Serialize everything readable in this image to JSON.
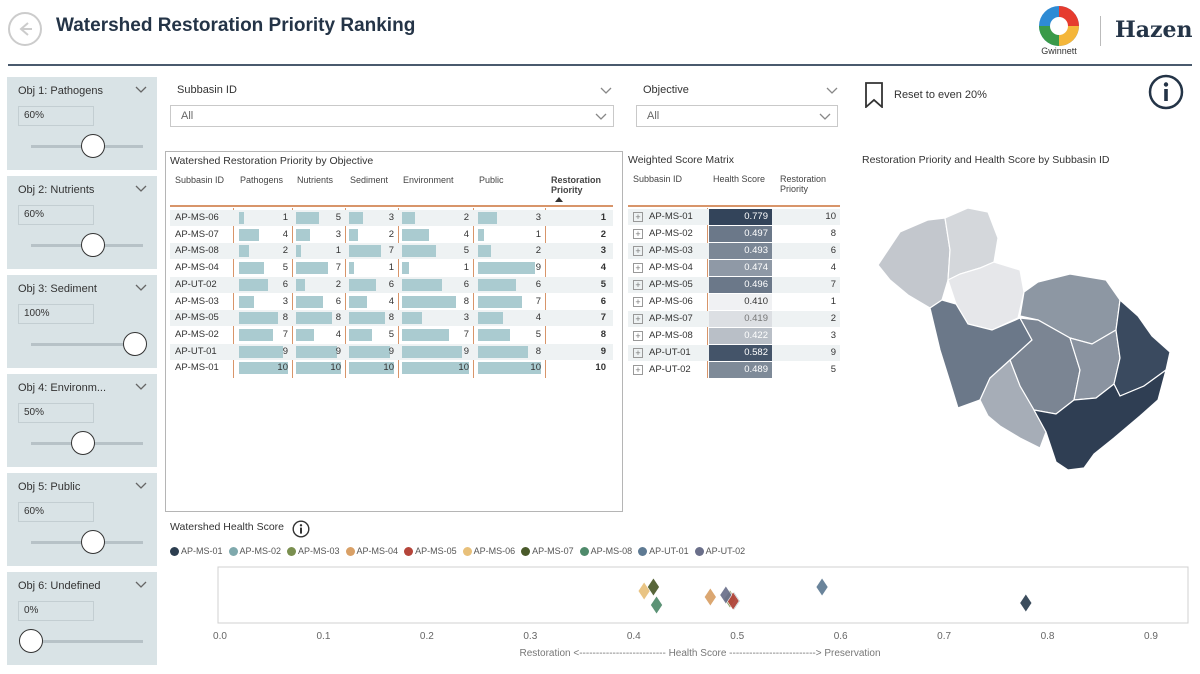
{
  "header": {
    "title": "Watershed Restoration Priority Ranking",
    "gwinnett_logo_text": "Gwinnett",
    "hazen_logo_text": "Hazen"
  },
  "objectives": [
    {
      "title": "Obj 1: Pathogens",
      "value": "60%",
      "slider_fraction": 0.6
    },
    {
      "title": "Obj 2: Nutrients",
      "value": "60%",
      "slider_fraction": 0.6
    },
    {
      "title": "Obj 3: Sediment",
      "value": "100%",
      "slider_fraction": 1.0
    },
    {
      "title": "Obj 4: Environm...",
      "value": "50%",
      "slider_fraction": 0.5
    },
    {
      "title": "Obj 5: Public",
      "value": "60%",
      "slider_fraction": 0.6
    },
    {
      "title": "Obj 6: Undefined",
      "value": "0%",
      "slider_fraction": 0.0
    }
  ],
  "filters": {
    "subbasin": {
      "label": "Subbasin ID",
      "value": "All"
    },
    "objective": {
      "label": "Objective",
      "value": "All"
    }
  },
  "reset_label": "Reset to even 20%",
  "priority_table": {
    "title": "Watershed Restoration Priority by Objective",
    "headers": [
      "Subbasin ID",
      "Pathogens",
      "Nutrients",
      "Sediment",
      "Environment",
      "Public",
      "Restoration Priority"
    ],
    "rows": [
      {
        "id": "AP-MS-06",
        "v": [
          1,
          5,
          3,
          2,
          3
        ],
        "rp": 1
      },
      {
        "id": "AP-MS-07",
        "v": [
          4,
          3,
          2,
          4,
          1
        ],
        "rp": 2
      },
      {
        "id": "AP-MS-08",
        "v": [
          2,
          1,
          7,
          5,
          2
        ],
        "rp": 3
      },
      {
        "id": "AP-MS-04",
        "v": [
          5,
          7,
          1,
          1,
          9
        ],
        "rp": 4
      },
      {
        "id": "AP-UT-02",
        "v": [
          6,
          2,
          6,
          6,
          6
        ],
        "rp": 5
      },
      {
        "id": "AP-MS-03",
        "v": [
          3,
          6,
          4,
          8,
          7
        ],
        "rp": 6
      },
      {
        "id": "AP-MS-05",
        "v": [
          8,
          8,
          8,
          3,
          4
        ],
        "rp": 7
      },
      {
        "id": "AP-MS-02",
        "v": [
          7,
          4,
          5,
          7,
          5
        ],
        "rp": 8
      },
      {
        "id": "AP-UT-01",
        "v": [
          9,
          9,
          9,
          9,
          8
        ],
        "rp": 9
      },
      {
        "id": "AP-MS-01",
        "v": [
          10,
          10,
          10,
          10,
          10
        ],
        "rp": 10
      }
    ]
  },
  "score_matrix": {
    "title": "Weighted Score Matrix",
    "headers": [
      "Subbasin ID",
      "Health Score",
      "Restoration Priority"
    ],
    "rows": [
      {
        "id": "AP-MS-01",
        "hs": "0.779",
        "rp": "10",
        "color": "#33445a",
        "text": "#ffffff"
      },
      {
        "id": "AP-MS-02",
        "hs": "0.497",
        "rp": "8",
        "color": "#6b7889",
        "text": "#ffffff"
      },
      {
        "id": "AP-MS-03",
        "hs": "0.493",
        "rp": "6",
        "color": "#7b8796",
        "text": "#ffffff"
      },
      {
        "id": "AP-MS-04",
        "hs": "0.474",
        "rp": "4",
        "color": "#8f99a6",
        "text": "#ffffff"
      },
      {
        "id": "AP-MS-05",
        "hs": "0.496",
        "rp": "7",
        "color": "#6b7889",
        "text": "#ffffff"
      },
      {
        "id": "AP-MS-06",
        "hs": "0.410",
        "rp": "1",
        "color": "#f0f1f3",
        "text": "#333333"
      },
      {
        "id": "AP-MS-07",
        "hs": "0.419",
        "rp": "2",
        "color": "#dcdfe3",
        "text": "#777777"
      },
      {
        "id": "AP-MS-08",
        "hs": "0.422",
        "rp": "3",
        "color": "#b9bfc7",
        "text": "#ffffff"
      },
      {
        "id": "AP-UT-01",
        "hs": "0.582",
        "rp": "9",
        "color": "#445469",
        "text": "#ffffff"
      },
      {
        "id": "AP-UT-02",
        "hs": "0.489",
        "rp": "5",
        "color": "#7e8a98",
        "text": "#ffffff"
      }
    ]
  },
  "map": {
    "title": "Restoration Priority and Health Score by Subbasin ID"
  },
  "health_chart": {
    "title": "Watershed Health Score",
    "axis_label": "Restoration <-------------------------- Health Score --------------------------> Preservation",
    "ticks": [
      "0.0",
      "0.1",
      "0.2",
      "0.3",
      "0.4",
      "0.5",
      "0.6",
      "0.7",
      "0.8",
      "0.9"
    ]
  },
  "chart_data": {
    "type": "scatter",
    "title": "Watershed Health Score",
    "xlabel": "Restoration <-------------------------- Health Score --------------------------> Preservation",
    "xlim": [
      0,
      0.9
    ],
    "series": [
      {
        "name": "AP-MS-01",
        "color": "#2c3e50",
        "x": 0.779
      },
      {
        "name": "AP-MS-02",
        "color": "#7fa9ad",
        "x": 0.497
      },
      {
        "name": "AP-MS-03",
        "color": "#7a8f4f",
        "x": 0.493
      },
      {
        "name": "AP-MS-04",
        "color": "#d9a066",
        "x": 0.474
      },
      {
        "name": "AP-MS-05",
        "color": "#b5453a",
        "x": 0.496
      },
      {
        "name": "AP-MS-06",
        "color": "#e8c07a",
        "x": 0.41
      },
      {
        "name": "AP-MS-07",
        "color": "#4a5a2a",
        "x": 0.419
      },
      {
        "name": "AP-MS-08",
        "color": "#4f8a6b",
        "x": 0.422
      },
      {
        "name": "AP-UT-01",
        "color": "#5e7a93",
        "x": 0.582
      },
      {
        "name": "AP-UT-02",
        "color": "#6a6f8a",
        "x": 0.489
      }
    ]
  }
}
